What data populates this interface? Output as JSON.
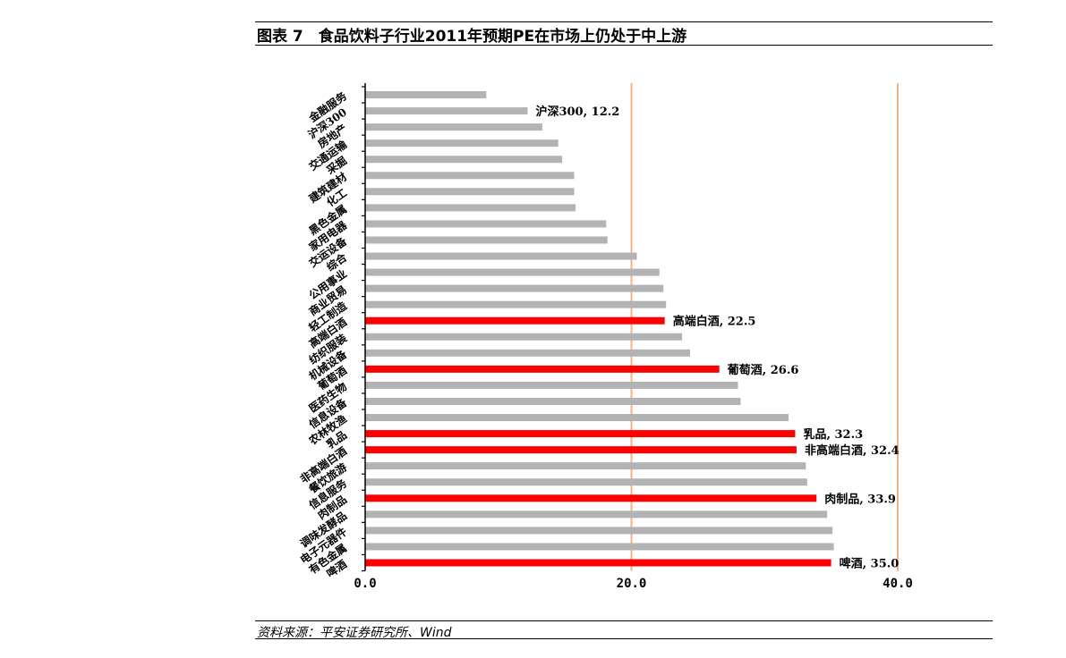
{
  "title": "图表 7　食品饮料子行业2011年预期PE在市场上仍处于中上游",
  "source": "资料来源：平安证券研究所、Wind",
  "colors": {
    "highlight": "#ff0000",
    "normal": "#b3b3b3",
    "gridline": "#f4b183",
    "axis": "#000000"
  },
  "chart_data": {
    "type": "bar",
    "orientation": "horizontal",
    "title": "食品饮料子行业2011年预期PE在市场上仍处于中上游",
    "xlabel": "",
    "ylabel": "",
    "xlim": [
      0,
      40
    ],
    "xticks": [
      0,
      20,
      40
    ],
    "xtick_labels": [
      "0.0",
      "20.0",
      "40.0"
    ],
    "grid": "vertical lines at 20 and 40",
    "categories": [
      "金融服务",
      "沪深300",
      "房地产",
      "交通运输",
      "采掘",
      "建筑建材",
      "化工",
      "黑色金属",
      "家用电器",
      "交运设备",
      "综合",
      "公用事业",
      "商业贸易",
      "轻工制造",
      "高端白酒",
      "纺织服装",
      "机械设备",
      "葡萄酒",
      "医药生物",
      "信息设备",
      "农林牧渔",
      "乳品",
      "非高端白酒",
      "餐饮旅游",
      "信息服务",
      "肉制品",
      "调味发酵品",
      "电子元器件",
      "有色金属",
      "啤酒"
    ],
    "values": [
      9.1,
      12.2,
      13.3,
      14.5,
      14.8,
      15.7,
      15.7,
      15.8,
      18.1,
      18.2,
      20.4,
      22.1,
      22.4,
      22.6,
      22.5,
      23.8,
      24.4,
      26.6,
      28.0,
      28.2,
      31.8,
      32.3,
      32.4,
      33.1,
      33.2,
      33.9,
      34.7,
      35.1,
      35.2,
      35.0
    ],
    "highlighted": [
      "高端白酒",
      "葡萄酒",
      "乳品",
      "非高端白酒",
      "肉制品",
      "啤酒"
    ],
    "annotations": [
      {
        "category": "沪深300",
        "text": "沪深300, 12.2"
      },
      {
        "category": "高端白酒",
        "text": "高端白酒, 22.5"
      },
      {
        "category": "葡萄酒",
        "text": "葡萄酒, 26.6"
      },
      {
        "category": "乳品",
        "text": "乳品, 32.3"
      },
      {
        "category": "非高端白酒",
        "text": "非高端白酒, 32.4"
      },
      {
        "category": "肉制品",
        "text": "肉制品, 33.9"
      },
      {
        "category": "啤酒",
        "text": "啤酒, 35.0"
      }
    ]
  }
}
